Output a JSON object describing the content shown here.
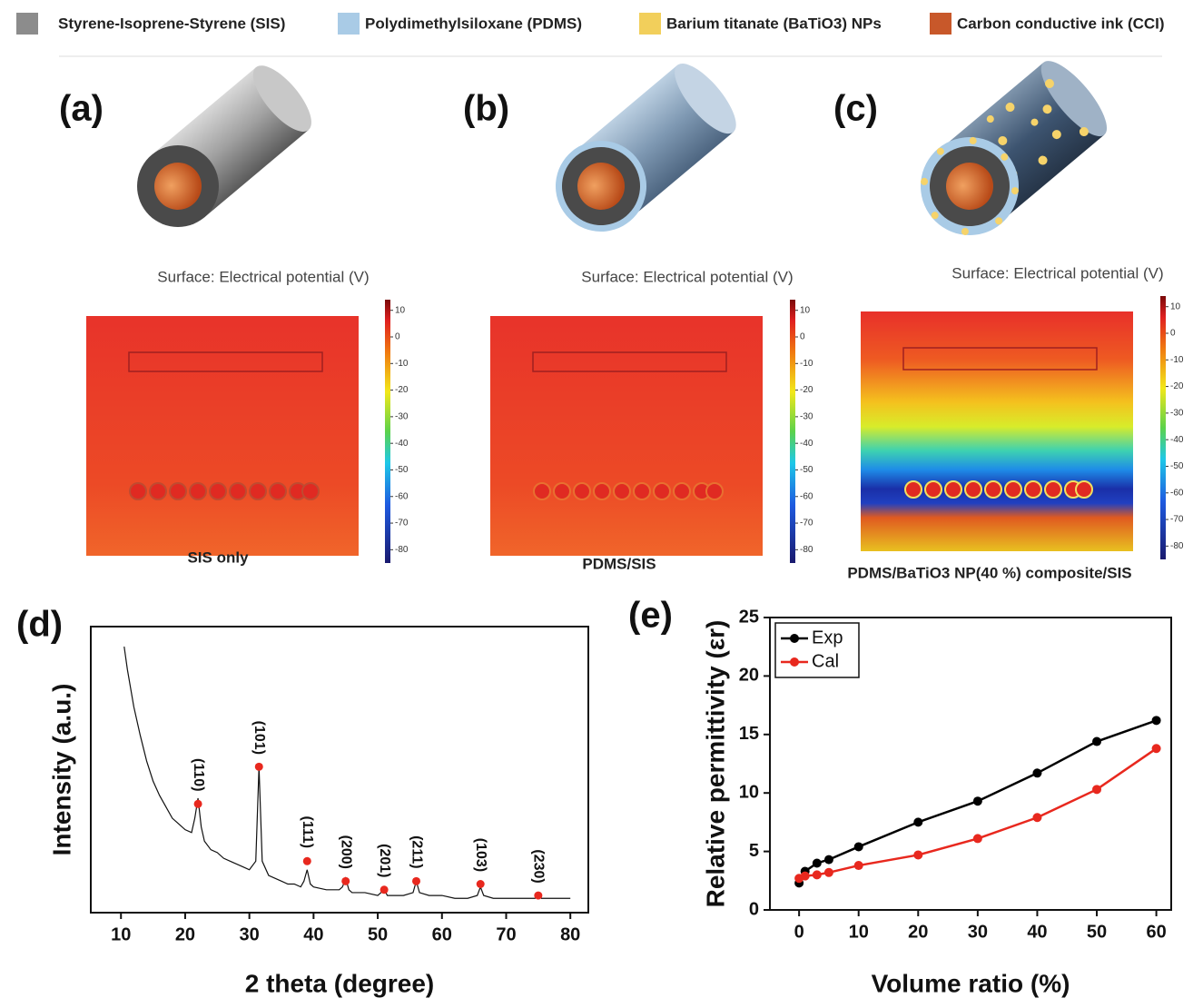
{
  "legend": [
    {
      "label": "Styrene-Isoprene-Styrene (SIS)",
      "color": "#8c8c8c"
    },
    {
      "label": "Polydimethylsiloxane (PDMS)",
      "color": "#a9cbe6"
    },
    {
      "label": "Barium titanate (BaTiO3) NPs",
      "color": "#f2cf5b"
    },
    {
      "label": "Carbon conductive ink (CCI)",
      "color": "#c8582a"
    }
  ],
  "panels": [
    {
      "label": "(a)",
      "surface_title": "Surface: Electrical potential (V)",
      "caption": "SIS only"
    },
    {
      "label": "(b)",
      "surface_title": "Surface: Electrical potential (V)",
      "caption": "PDMS/SIS"
    },
    {
      "label": "(c)",
      "surface_title": "Surface: Electrical potential (V)",
      "caption": "PDMS/BaTiO3 NP(40 %) composite/SIS"
    }
  ],
  "colorbar": {
    "lim": [
      -85,
      14
    ],
    "ticks": [
      10,
      0,
      -10,
      -20,
      -30,
      -40,
      -50,
      -60,
      -70,
      -80
    ]
  },
  "chart_data": [
    {
      "type": "line",
      "panel_label": "(d)",
      "x_label": "2 theta (degree)",
      "y_label": "Intensity (a.u.)",
      "x": [
        10.5,
        11,
        12,
        13,
        14,
        15,
        16,
        17,
        18,
        19,
        20,
        21,
        21.5,
        22,
        22.5,
        23,
        24,
        25,
        26,
        27,
        28,
        29,
        30,
        31,
        31.5,
        32,
        33,
        34,
        35,
        36,
        37,
        38,
        38.5,
        39,
        39.5,
        40,
        42,
        44,
        44.5,
        45,
        45.5,
        46,
        48,
        50,
        50.5,
        51,
        51.5,
        52,
        54,
        55.5,
        56,
        56.5,
        58,
        60,
        62,
        64,
        65.5,
        66,
        66.5,
        68,
        70,
        72,
        74.5,
        75,
        75.5,
        77,
        80
      ],
      "series": [
        {
          "color": "#111111",
          "values": [
            93,
            85,
            72,
            62,
            53,
            46,
            41,
            37,
            33,
            31,
            29,
            28,
            33,
            40,
            30,
            25,
            22,
            21,
            19,
            18,
            17,
            16,
            15,
            18,
            51,
            18,
            13,
            12,
            11,
            10,
            10,
            9,
            11,
            15,
            10,
            9,
            8,
            8,
            9,
            12,
            8,
            7,
            7,
            6,
            7,
            8,
            6,
            6,
            6,
            7,
            11,
            7,
            6,
            6,
            5,
            5,
            6,
            9,
            6,
            5,
            5,
            5,
            5,
            7,
            5,
            5,
            5
          ]
        }
      ],
      "annotations": [
        {
          "label": "(110)",
          "x": 22,
          "y": 38
        },
        {
          "label": "(101)",
          "x": 31.5,
          "y": 51
        },
        {
          "label": "(111)",
          "x": 39,
          "y": 18
        },
        {
          "label": "(200)",
          "x": 45,
          "y": 11
        },
        {
          "label": "(201)",
          "x": 51,
          "y": 8
        },
        {
          "label": "(211)",
          "x": 56,
          "y": 11
        },
        {
          "label": "(103)",
          "x": 66,
          "y": 10
        },
        {
          "label": "(230)",
          "x": 75,
          "y": 6
        }
      ],
      "marker_color": "#e8281e",
      "xlim": [
        5.3,
        82.8
      ],
      "ylim": [
        0,
        100
      ],
      "xticks": [
        10,
        20,
        30,
        40,
        50,
        60,
        70,
        80
      ]
    },
    {
      "type": "line",
      "panel_label": "(e)",
      "x_label": "Volume ratio (%)",
      "y_label": "Relative permittivity (εr)",
      "x": [
        0,
        1,
        3,
        5,
        10,
        20,
        30,
        40,
        50,
        60
      ],
      "series": [
        {
          "name": "Exp",
          "color": "#000000",
          "values": [
            2.3,
            3.3,
            4.0,
            4.3,
            5.4,
            7.5,
            9.3,
            11.7,
            14.4,
            16.2
          ]
        },
        {
          "name": "Cal",
          "color": "#e8281e",
          "values": [
            2.7,
            2.9,
            3.0,
            3.2,
            3.8,
            4.7,
            6.1,
            7.9,
            10.3,
            13.8
          ]
        }
      ],
      "legend_position": "upper left",
      "xlim": [
        -4.9,
        62.5
      ],
      "ylim": [
        0,
        25
      ],
      "xticks": [
        0,
        10,
        20,
        30,
        40,
        50,
        60
      ],
      "yticks": [
        0,
        5,
        10,
        15,
        20,
        25
      ]
    }
  ]
}
